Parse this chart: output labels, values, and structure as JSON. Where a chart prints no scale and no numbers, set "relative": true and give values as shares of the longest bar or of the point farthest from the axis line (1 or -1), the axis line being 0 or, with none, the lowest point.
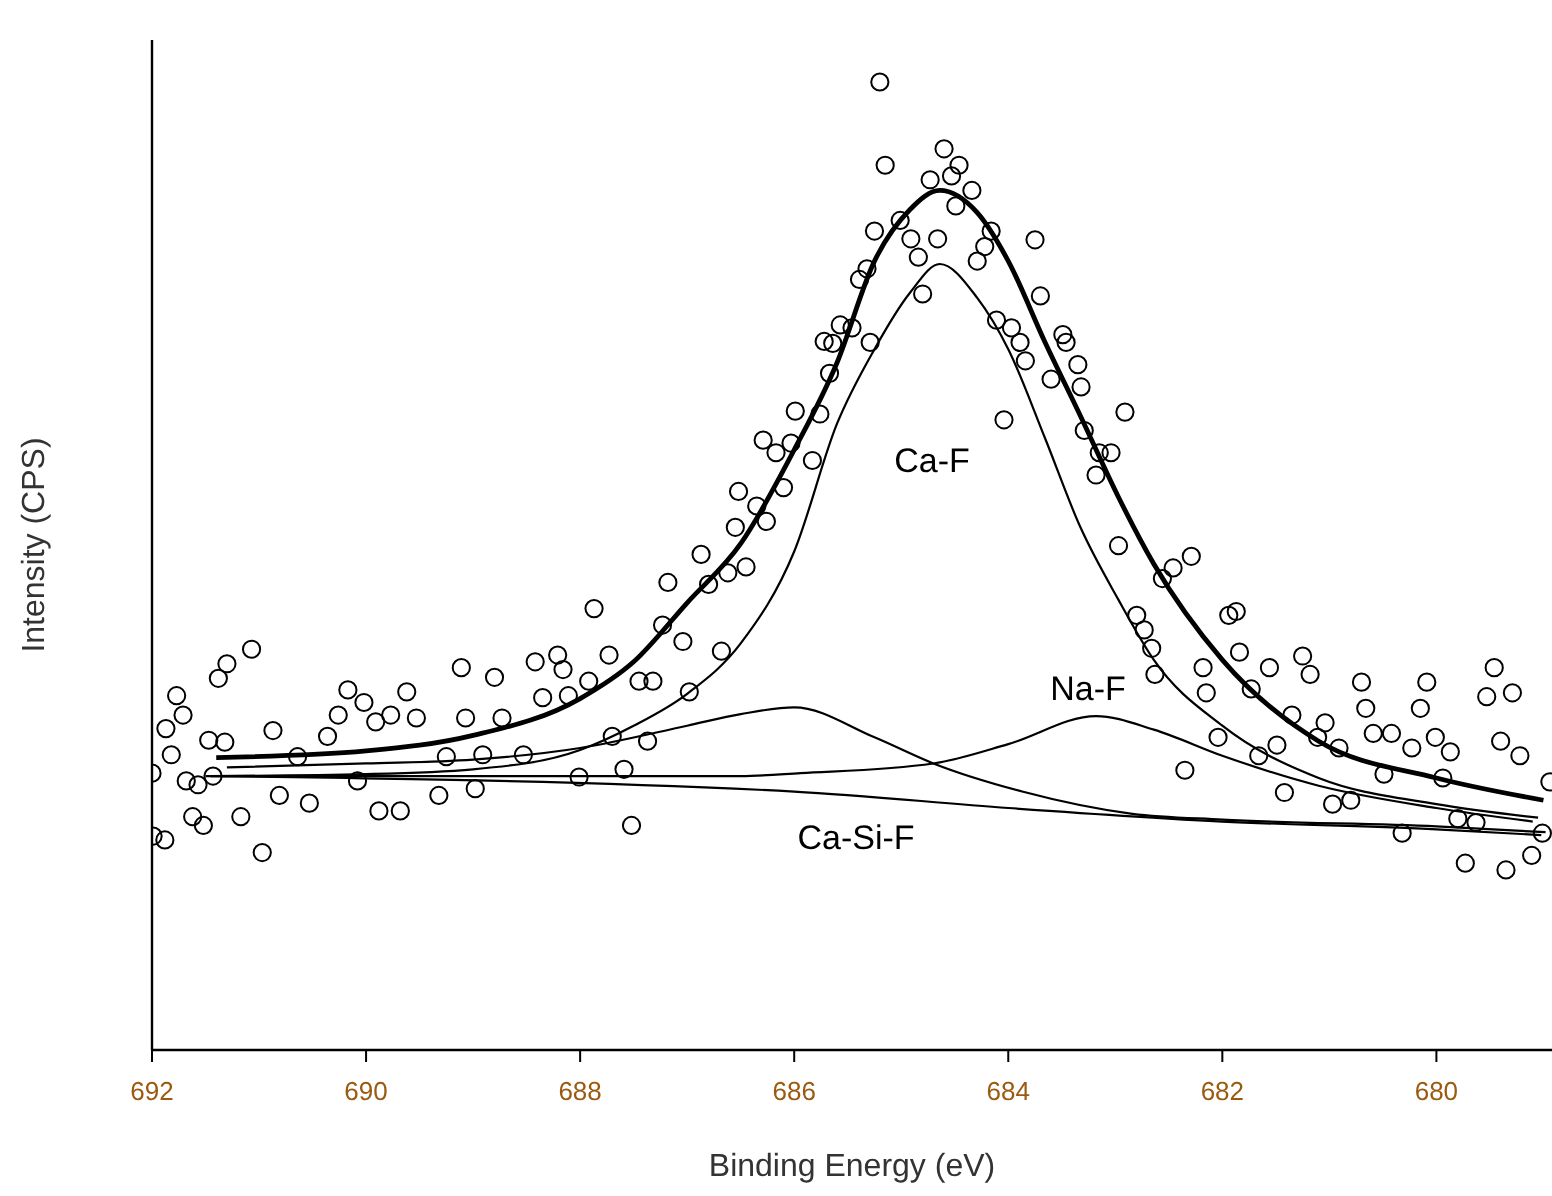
{
  "chart_data": {
    "type": "line",
    "xlabel": "Binding Energy (eV)",
    "ylabel": "Intensity (CPS)",
    "relative": true,
    "xlim": [
      692,
      678.92
    ],
    "xticks": [
      692,
      690,
      688,
      686,
      684,
      682,
      680
    ],
    "series": [
      {
        "type": "scatter",
        "color": "#000000",
        "marker": "circle",
        "x": [
          692.0,
          691.99,
          691.88,
          691.87,
          691.82,
          691.77,
          691.71,
          691.68,
          691.62,
          691.57,
          691.52,
          691.47,
          691.43,
          691.38,
          691.32,
          691.3,
          691.17,
          691.07,
          690.97,
          690.87,
          690.81,
          690.64,
          690.53,
          690.36,
          690.26,
          690.17,
          690.08,
          690.02,
          689.91,
          689.88,
          689.77,
          689.68,
          689.62,
          689.53,
          689.32,
          689.25,
          689.11,
          689.07,
          688.98,
          688.91,
          688.8,
          688.73,
          688.53,
          688.42,
          688.35,
          688.21,
          688.16,
          688.11,
          688.01,
          687.92,
          687.87,
          687.73,
          687.7,
          687.59,
          687.52,
          687.45,
          687.37,
          687.32,
          687.23,
          687.18,
          687.04,
          686.98,
          686.87,
          686.8,
          686.68,
          686.62,
          686.55,
          686.52,
          686.45,
          686.35,
          686.29,
          686.26,
          686.17,
          686.1,
          686.03,
          685.99,
          685.83,
          685.76,
          685.72,
          685.67,
          685.64,
          685.57,
          685.46,
          685.39,
          685.32,
          685.29,
          685.25,
          685.2,
          685.15,
          685.01,
          684.91,
          684.84,
          684.8,
          684.73,
          684.66,
          684.6,
          684.53,
          684.49,
          684.46,
          684.34,
          684.29,
          684.22,
          684.16,
          684.11,
          684.04,
          683.97,
          683.89,
          683.84,
          683.75,
          683.7,
          683.6,
          683.49,
          683.46,
          683.35,
          683.32,
          683.29,
          683.18,
          683.15,
          683.04,
          682.97,
          682.91,
          682.8,
          682.73,
          682.66,
          682.63,
          682.56,
          682.46,
          682.35,
          682.29,
          682.18,
          682.15,
          682.04,
          681.94,
          681.87,
          681.84,
          681.73,
          681.66,
          681.56,
          681.49,
          681.42,
          681.35,
          681.25,
          681.18,
          681.11,
          681.04,
          680.97,
          680.91,
          680.8,
          680.7,
          680.66,
          680.59,
          680.49,
          680.42,
          680.32,
          680.23,
          680.15,
          680.09,
          680.01,
          679.94,
          679.87,
          679.8,
          679.73,
          679.63,
          679.53,
          679.46,
          679.4,
          679.35,
          679.29,
          679.22,
          679.11,
          679.01,
          678.94
        ],
        "values": [
          0.286,
          0.221,
          0.217,
          0.332,
          0.305,
          0.366,
          0.346,
          0.278,
          0.241,
          0.274,
          0.232,
          0.32,
          0.283,
          0.384,
          0.318,
          0.399,
          0.241,
          0.414,
          0.204,
          0.33,
          0.263,
          0.303,
          0.255,
          0.324,
          0.346,
          0.372,
          0.278,
          0.359,
          0.339,
          0.247,
          0.346,
          0.247,
          0.37,
          0.343,
          0.263,
          0.303,
          0.395,
          0.343,
          0.27,
          0.305,
          0.385,
          0.343,
          0.305,
          0.401,
          0.364,
          0.408,
          0.393,
          0.366,
          0.282,
          0.381,
          0.456,
          0.408,
          0.324,
          0.29,
          0.232,
          0.381,
          0.319,
          0.381,
          0.439,
          0.483,
          0.422,
          0.37,
          0.512,
          0.481,
          0.412,
          0.493,
          0.54,
          0.577,
          0.499,
          0.562,
          0.63,
          0.546,
          0.617,
          0.581,
          0.627,
          0.66,
          0.609,
          0.657,
          0.732,
          0.699,
          0.73,
          0.749,
          0.746,
          0.796,
          0.807,
          0.731,
          0.846,
          1.0,
          0.914,
          0.857,
          0.838,
          0.819,
          0.781,
          0.899,
          0.838,
          0.931,
          0.903,
          0.872,
          0.914,
          0.888,
          0.815,
          0.83,
          0.846,
          0.754,
          0.651,
          0.746,
          0.731,
          0.712,
          0.837,
          0.779,
          0.693,
          0.739,
          0.731,
          0.708,
          0.685,
          0.64,
          0.594,
          0.617,
          0.617,
          0.521,
          0.659,
          0.449,
          0.434,
          0.415,
          0.388,
          0.487,
          0.498,
          0.289,
          0.51,
          0.395,
          0.369,
          0.323,
          0.449,
          0.453,
          0.411,
          0.373,
          0.304,
          0.395,
          0.315,
          0.266,
          0.346,
          0.407,
          0.388,
          0.323,
          0.338,
          0.254,
          0.312,
          0.258,
          0.38,
          0.353,
          0.327,
          0.285,
          0.327,
          0.224,
          0.312,
          0.353,
          0.38,
          0.323,
          0.281,
          0.308,
          0.239,
          0.193,
          0.235,
          0.365,
          0.395,
          0.319,
          0.186,
          0.369,
          0.304,
          0.201,
          0.224,
          0.277
        ]
      },
      {
        "color": "#000000",
        "x": [
          691.4,
          690,
          689,
          688,
          687.5,
          687,
          686.5,
          686,
          685.6,
          685.25,
          684.92,
          684.64,
          684.29,
          684,
          683.66,
          683.33,
          682.97,
          682.64,
          682,
          681.1,
          680,
          679.0
        ],
        "values": [
          0.302,
          0.309,
          0.325,
          0.363,
          0.401,
          0.462,
          0.523,
          0.62,
          0.71,
          0.815,
          0.868,
          0.888,
          0.865,
          0.815,
          0.732,
          0.656,
          0.571,
          0.502,
          0.403,
          0.319,
          0.281,
          0.258
        ]
      },
      {
        "name": "Ca-F",
        "color": "#000000",
        "x": [
          691.45,
          690,
          689,
          688,
          687.5,
          687,
          686.5,
          686,
          685.6,
          685.25,
          684.92,
          684.64,
          684.29,
          684,
          683.66,
          683.33,
          682.97,
          682.64,
          682,
          681.1,
          680,
          679.05
        ],
        "values": [
          0.283,
          0.285,
          0.29,
          0.31,
          0.335,
          0.368,
          0.42,
          0.515,
          0.647,
          0.724,
          0.782,
          0.812,
          0.777,
          0.724,
          0.633,
          0.541,
          0.465,
          0.403,
          0.335,
          0.281,
          0.254,
          0.24
        ]
      },
      {
        "name": "Na-F",
        "color": "#000000",
        "x": [
          691.35,
          690,
          688,
          686.5,
          685.94,
          684.7,
          684,
          683.18,
          682.64,
          682,
          681.1,
          680,
          679.1
        ],
        "values": [
          0.283,
          0.283,
          0.283,
          0.283,
          0.286,
          0.296,
          0.316,
          0.345,
          0.331,
          0.304,
          0.273,
          0.25,
          0.236
        ]
      },
      {
        "color": "#000000",
        "x": [
          691.3,
          690,
          689,
          688,
          687,
          686.5,
          686,
          685.25,
          684.7,
          683.87,
          682.84,
          682,
          680,
          678.98
        ],
        "values": [
          0.292,
          0.296,
          0.3,
          0.312,
          0.335,
          0.347,
          0.354,
          0.323,
          0.296,
          0.267,
          0.244,
          0.238,
          0.231,
          0.225
        ]
      },
      {
        "name": "Ca-Si-F",
        "color": "#000000",
        "x": [
          691.5,
          686,
          684,
          682,
          680,
          679.02
        ],
        "values": [
          0.283,
          0.267,
          0.25,
          0.236,
          0.228,
          0.222
        ]
      }
    ]
  }
}
